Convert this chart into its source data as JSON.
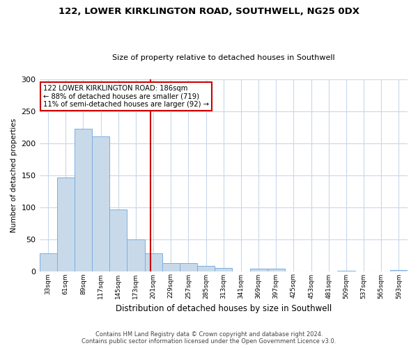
{
  "title1": "122, LOWER KIRKLINGTON ROAD, SOUTHWELL, NG25 0DX",
  "title2": "Size of property relative to detached houses in Southwell",
  "xlabel": "Distribution of detached houses by size in Southwell",
  "ylabel": "Number of detached properties",
  "bin_labels": [
    "33sqm",
    "61sqm",
    "89sqm",
    "117sqm",
    "145sqm",
    "173sqm",
    "201sqm",
    "229sqm",
    "257sqm",
    "285sqm",
    "313sqm",
    "341sqm",
    "369sqm",
    "397sqm",
    "425sqm",
    "453sqm",
    "481sqm",
    "509sqm",
    "537sqm",
    "565sqm",
    "593sqm"
  ],
  "bar_values": [
    28,
    146,
    222,
    210,
    96,
    50,
    28,
    13,
    13,
    8,
    5,
    0,
    4,
    4,
    0,
    0,
    0,
    1,
    0,
    0,
    2
  ],
  "bar_color": "#c8daea",
  "bar_edge_color": "#7aade0",
  "vline_x_index": 5.82,
  "vline_color": "#cc0000",
  "annotation_lines": [
    "122 LOWER KIRKLINGTON ROAD: 186sqm",
    "← 88% of detached houses are smaller (719)",
    "11% of semi-detached houses are larger (92) →"
  ],
  "annotation_box_color": "#cc0000",
  "ylim": [
    0,
    300
  ],
  "yticks": [
    0,
    50,
    100,
    150,
    200,
    250,
    300
  ],
  "footer1": "Contains HM Land Registry data © Crown copyright and database right 2024.",
  "footer2": "Contains public sector information licensed under the Open Government Licence v3.0."
}
